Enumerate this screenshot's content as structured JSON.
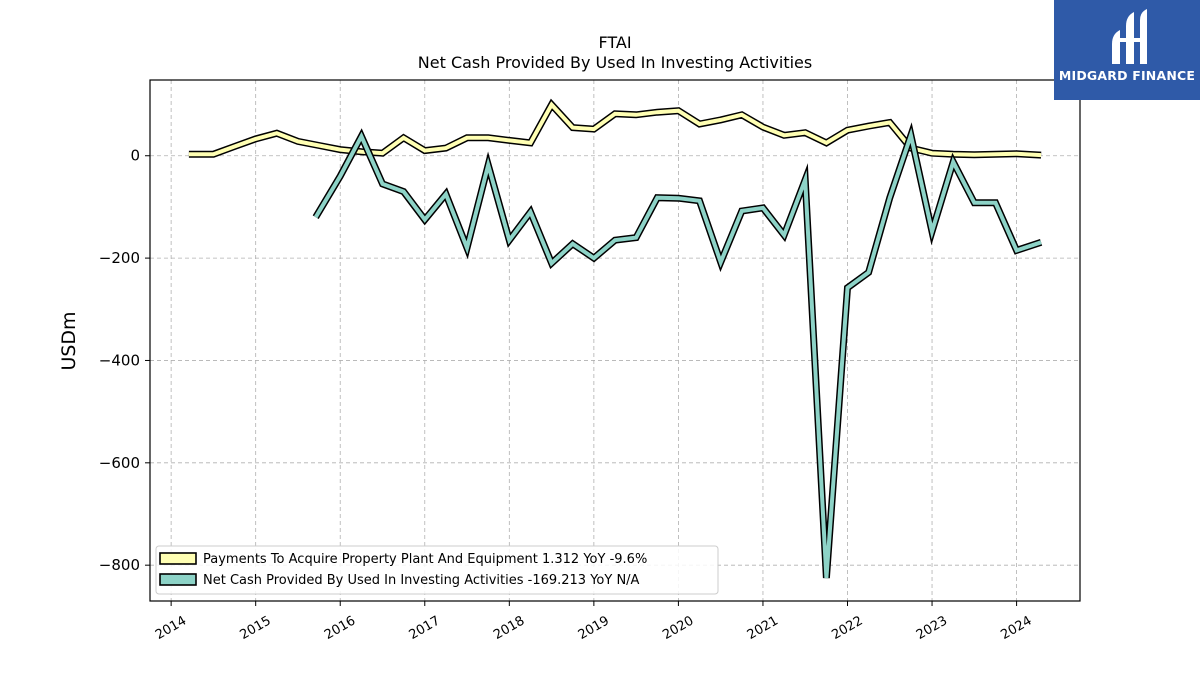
{
  "logo": {
    "text": "MIDGARD FINANCE",
    "background": "#2f5aa8"
  },
  "chart_data": {
    "type": "line",
    "title": "FTAI",
    "subtitle": "Net Cash Provided By Used In Investing Activities",
    "ylabel": "USDm",
    "xlabel": "",
    "ylim": [
      -870,
      148
    ],
    "xlim": [
      2013.75,
      2024.75
    ],
    "yticks": [
      0,
      -200,
      -400,
      -600,
      -800
    ],
    "ytick_labels": [
      "0",
      "−200",
      "−400",
      "−600",
      "−800"
    ],
    "xticks": [
      2014,
      2015,
      2016,
      2017,
      2018,
      2019,
      2020,
      2021,
      2022,
      2023,
      2024
    ],
    "xtick_labels": [
      "2014",
      "2015",
      "2016",
      "2017",
      "2018",
      "2019",
      "2020",
      "2021",
      "2022",
      "2023",
      "2024"
    ],
    "grid": true,
    "legend_position": "lower-left",
    "series": [
      {
        "name": "Payments To Acquire Property Plant And Equipment",
        "legend_label": "Payments To Acquire Property Plant And Equipment  1.312 YoY -9.6%",
        "color": "#ffffb3",
        "x": [
          2014.21,
          2014.5,
          2014.75,
          2015.0,
          2015.25,
          2015.5,
          2015.75,
          2016.0,
          2016.25,
          2016.5,
          2016.75,
          2017.0,
          2017.25,
          2017.5,
          2017.75,
          2018.0,
          2018.25,
          2018.5,
          2018.75,
          2019.0,
          2019.25,
          2019.5,
          2019.75,
          2020.0,
          2020.25,
          2020.5,
          2020.75,
          2021.0,
          2021.25,
          2021.5,
          2021.75,
          2022.0,
          2022.25,
          2022.5,
          2022.75,
          2023.0,
          2023.25,
          2023.5,
          2023.75,
          2024.0,
          2024.29
        ],
        "y": [
          3,
          3,
          18,
          33,
          44,
          28,
          20,
          12,
          8,
          5,
          35,
          10,
          15,
          35,
          35,
          30,
          25,
          100,
          55,
          52,
          82,
          80,
          85,
          88,
          62,
          70,
          80,
          56,
          40,
          45,
          25,
          50,
          58,
          65,
          15,
          5,
          3,
          2,
          3,
          4,
          1.312
        ]
      },
      {
        "name": "Net Cash Provided By Used In Investing Activities",
        "legend_label": "Net Cash Provided By Used In Investing Activities  -169.213 YoY N/A",
        "color": "#8dd3c7",
        "x": [
          2015.71,
          2016.0,
          2016.25,
          2016.5,
          2016.75,
          2017.0,
          2017.25,
          2017.5,
          2017.75,
          2018.0,
          2018.25,
          2018.5,
          2018.75,
          2019.0,
          2019.25,
          2019.5,
          2019.75,
          2020.0,
          2020.25,
          2020.5,
          2020.75,
          2021.0,
          2021.25,
          2021.5,
          2021.75,
          2022.0,
          2022.25,
          2022.5,
          2022.75,
          2023.0,
          2023.25,
          2023.5,
          2023.75,
          2024.0,
          2024.29
        ],
        "y": [
          -120,
          -40,
          38,
          -55,
          -70,
          -125,
          -75,
          -180,
          -18,
          -165,
          -110,
          -210,
          -172,
          -200,
          -165,
          -160,
          -82,
          -83,
          -88,
          -208,
          -108,
          -102,
          -155,
          -47,
          -825,
          -258,
          -228,
          -82,
          40,
          -148,
          -12,
          -92,
          -92,
          -185,
          -169.213
        ]
      }
    ]
  }
}
